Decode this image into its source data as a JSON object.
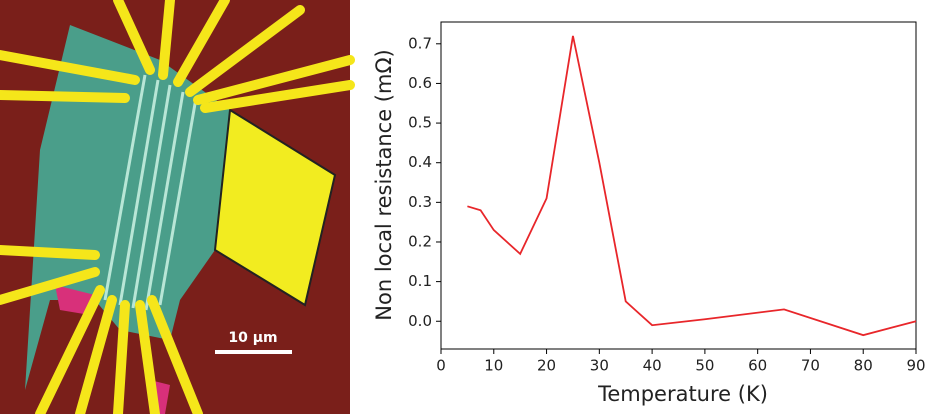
{
  "image": {
    "scale_bar": "10 μm"
  },
  "chart_data": {
    "type": "line",
    "x_label": "Temperature (K)",
    "y_label": "Non local resistance (mΩ)",
    "x": [
      5,
      7.5,
      10,
      15,
      20,
      25,
      30,
      35,
      40,
      50,
      65,
      80,
      90
    ],
    "series": [
      {
        "color": "#e8262a",
        "values": [
          0.29,
          0.28,
          0.23,
          0.17,
          0.31,
          0.72,
          0.4,
          0.05,
          -0.01,
          0.005,
          0.03,
          -0.035,
          0.0
        ]
      }
    ],
    "xlim": [
      0,
      90
    ],
    "xticks": [
      0,
      10,
      20,
      30,
      40,
      50,
      60,
      70,
      80,
      90
    ],
    "ylim": [
      -0.07,
      0.755
    ],
    "yticks": [
      {
        "value": 0,
        "label": "0.0"
      },
      0.1,
      0.2,
      0.3,
      0.4,
      0.5,
      0.6,
      0.7
    ]
  }
}
